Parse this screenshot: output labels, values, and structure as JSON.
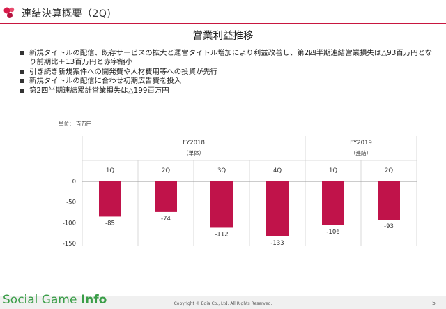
{
  "header": {
    "title": "連結決算概要（2Q)"
  },
  "slide_title": "営業利益推移",
  "bullets": [
    "新規タイトルの配信、既存サービスの拡大と運営タイトル増加により利益改善し、第2四半期連結営業損失は△93百万円となり前期比＋13百万円と赤字縮小",
    "引き続き新規案件への開発費や人材費用等への投資が先行",
    "新規タイトルの配信に合わせ初期広告費を投入",
    "第2四半期連結累計営業損失は△199百万円"
  ],
  "unit_label": "単位： 百万円",
  "groups": [
    {
      "label": "FY2018",
      "sublabel": "（単体）"
    },
    {
      "label": "FY2019",
      "sublabel": "（連結）"
    }
  ],
  "chart_data": {
    "type": "bar",
    "categories": [
      "1Q",
      "2Q",
      "3Q",
      "4Q",
      "1Q",
      "2Q"
    ],
    "values": [
      -85,
      -74,
      -112,
      -133,
      -106,
      -93
    ],
    "data_labels": [
      "-85",
      "-74",
      "-112",
      "-133",
      "-106",
      "-93"
    ],
    "y_ticks": [
      "0",
      "-50",
      "-100",
      "-150"
    ],
    "ylim": [
      -150,
      0
    ],
    "group_spans": [
      [
        0,
        3
      ],
      [
        4,
        5
      ]
    ],
    "bar_color": "#c0134a",
    "grid": false
  },
  "footer": {
    "watermark_prefix": "Social Game ",
    "watermark_bold": "Info",
    "copyright": "Copyright © Edia Co., Ltd. All Rights Reserved.",
    "page_number": "5"
  },
  "colors": {
    "accent": "#c8163f",
    "watermark": "#3a9e48"
  }
}
